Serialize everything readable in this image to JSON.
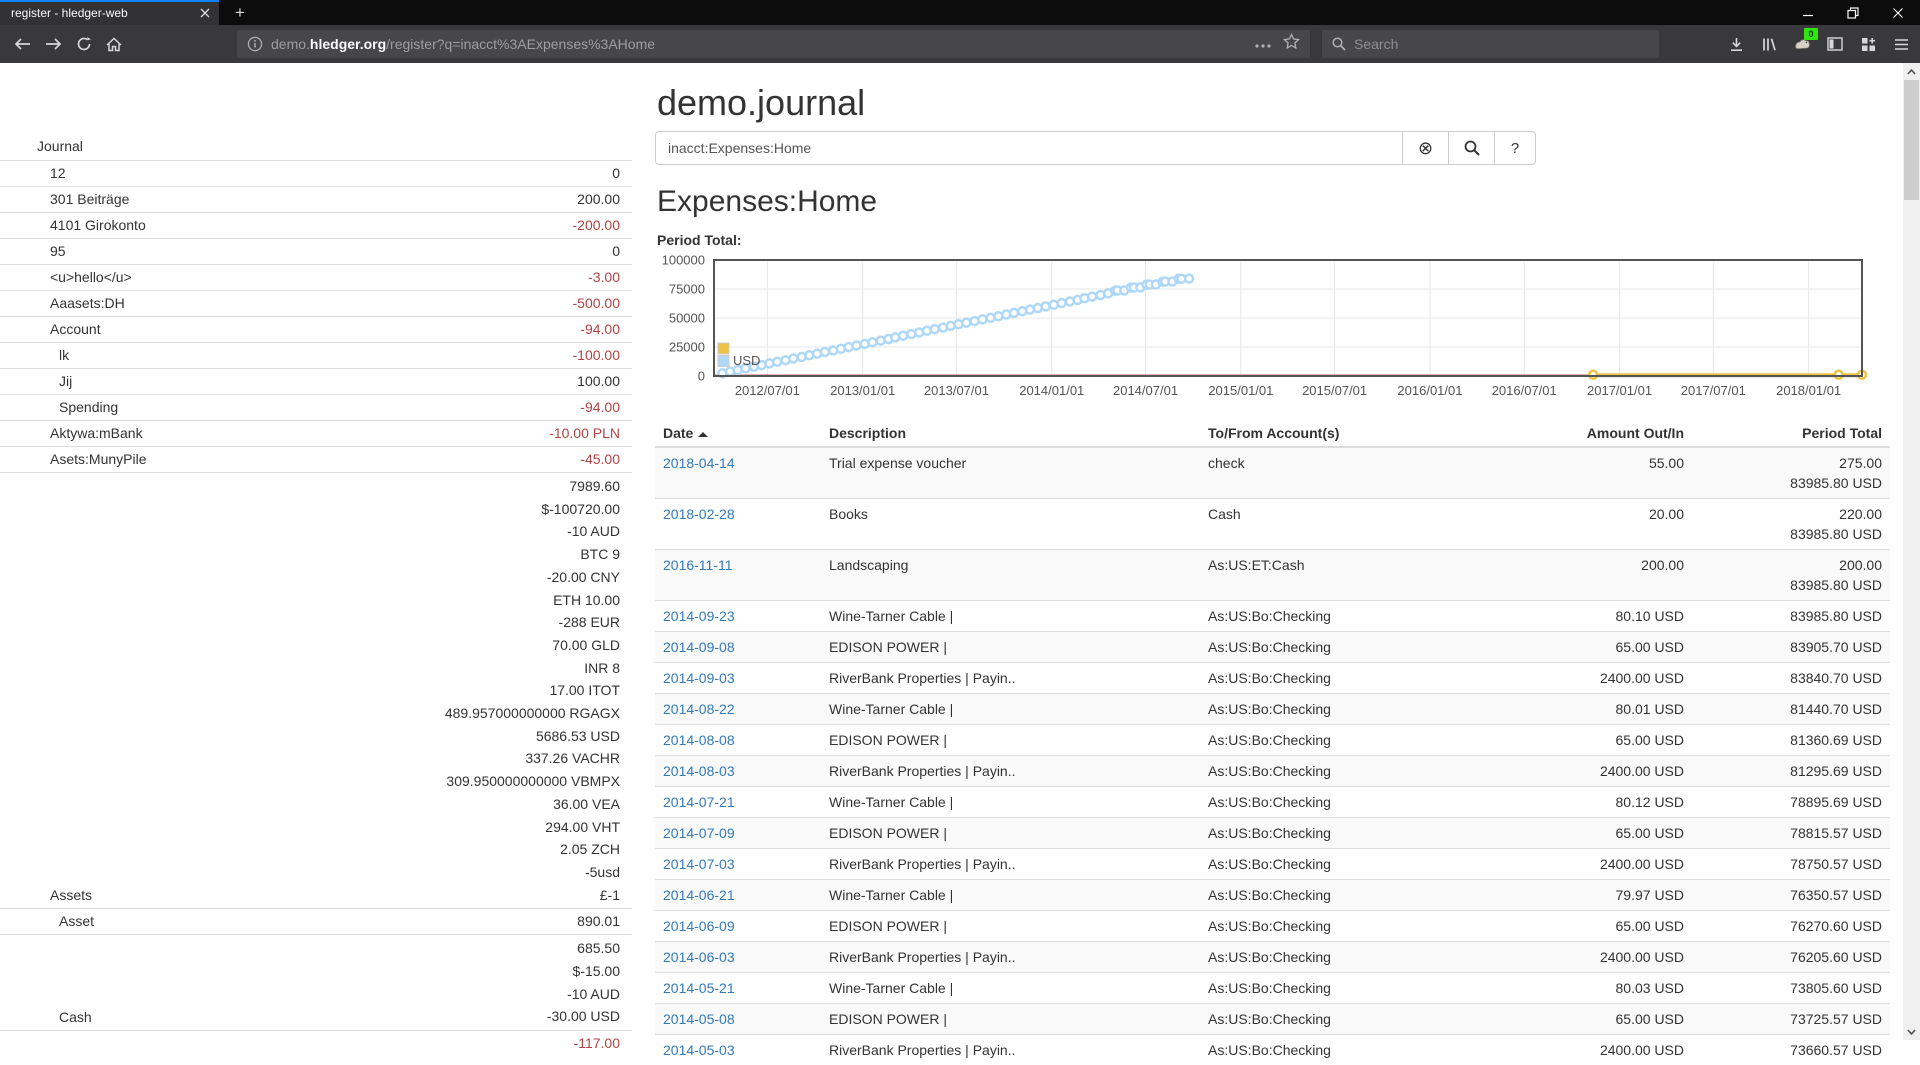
{
  "browser": {
    "tab_title": "register - hledger-web",
    "new_tab_label": "+",
    "url_prefix": "demo.",
    "url_domain": "hledger.org",
    "url_path": "/register?q=inacct%3AExpenses%3AHome",
    "search_placeholder": "Search",
    "extension_badge": "0"
  },
  "page": {
    "title": "demo.journal",
    "account_heading": "Expenses:Home",
    "chart_label": "Period Total:"
  },
  "search": {
    "value": "inacct:Expenses:Home",
    "clear_icon": "⊗",
    "help_label": "?"
  },
  "sidebar": {
    "journal_label": "Journal",
    "accounts": [
      {
        "name": "12",
        "indent": 1,
        "amounts": [
          {
            "t": "0",
            "neg": false
          }
        ]
      },
      {
        "name": "301 Beiträge",
        "indent": 1,
        "amounts": [
          {
            "t": "200.00",
            "neg": false
          }
        ]
      },
      {
        "name": "4101 Girokonto",
        "indent": 1,
        "amounts": [
          {
            "t": "-200.00",
            "neg": true
          }
        ]
      },
      {
        "name": "95",
        "indent": 1,
        "amounts": [
          {
            "t": "0",
            "neg": false
          }
        ]
      },
      {
        "name": "<u>hello</u>",
        "indent": 1,
        "amounts": [
          {
            "t": "-3.00",
            "neg": true
          }
        ]
      },
      {
        "name": "Aaasets:DH",
        "indent": 1,
        "amounts": [
          {
            "t": "-500.00",
            "neg": true
          }
        ]
      },
      {
        "name": "Account",
        "indent": 1,
        "amounts": [
          {
            "t": "-94.00",
            "neg": true
          }
        ]
      },
      {
        "name": "lk",
        "indent": 2,
        "amounts": [
          {
            "t": "-100.00",
            "neg": true
          }
        ]
      },
      {
        "name": "Jij",
        "indent": 2,
        "amounts": [
          {
            "t": "100.00",
            "neg": false
          }
        ]
      },
      {
        "name": "Spending",
        "indent": 2,
        "amounts": [
          {
            "t": "-94.00",
            "neg": true
          }
        ]
      },
      {
        "name": "Aktywa:mBank",
        "indent": 1,
        "amounts": [
          {
            "t": "-10.00 PLN",
            "neg": true
          }
        ]
      },
      {
        "name": "Asets:MunyPile",
        "indent": 1,
        "amounts": [
          {
            "t": "-45.00",
            "neg": true
          }
        ]
      },
      {
        "name": "Assets",
        "indent": 1,
        "amounts": [
          {
            "t": "7989.60",
            "neg": false
          },
          {
            "t": "$-100720.00",
            "neg": false
          },
          {
            "t": "-10 AUD",
            "neg": false
          },
          {
            "t": "BTC 9",
            "neg": false
          },
          {
            "t": "-20.00 CNY",
            "neg": false
          },
          {
            "t": "ETH 10.00",
            "neg": false
          },
          {
            "t": "-288 EUR",
            "neg": false
          },
          {
            "t": "70.00 GLD",
            "neg": false
          },
          {
            "t": "INR 8",
            "neg": false
          },
          {
            "t": "17.00 ITOT",
            "neg": false
          },
          {
            "t": "489.957000000000 RGAGX",
            "neg": false
          },
          {
            "t": "5686.53 USD",
            "neg": false
          },
          {
            "t": "337.26 VACHR",
            "neg": false
          },
          {
            "t": "309.950000000000 VBMPX",
            "neg": false
          },
          {
            "t": "36.00 VEA",
            "neg": false
          },
          {
            "t": "294.00 VHT",
            "neg": false
          },
          {
            "t": "2.05 ZCH",
            "neg": false
          },
          {
            "t": "-5usd",
            "neg": false
          },
          {
            "t": "£-1",
            "neg": false
          }
        ]
      },
      {
        "name": "Asset",
        "indent": 2,
        "amounts": [
          {
            "t": "890.01",
            "neg": false
          }
        ]
      },
      {
        "name": "Cash",
        "indent": 2,
        "amounts": [
          {
            "t": "685.50",
            "neg": false
          },
          {
            "t": "$-15.00",
            "neg": false
          },
          {
            "t": "-10 AUD",
            "neg": false
          },
          {
            "t": "-30.00 USD",
            "neg": false
          }
        ]
      },
      {
        "name": "",
        "indent": 2,
        "amounts": [
          {
            "t": "-117.00",
            "neg": true
          }
        ]
      }
    ]
  },
  "chart_data": {
    "type": "line",
    "title": "Period Total:",
    "x_axis": {
      "start": "2012-03-20",
      "end": "2018-04-14",
      "ticks": [
        {
          "date": "2012-07-01",
          "label": "2012/07/01"
        },
        {
          "date": "2013-01-01",
          "label": "2013/01/01"
        },
        {
          "date": "2013-07-01",
          "label": "2013/07/01"
        },
        {
          "date": "2014-01-01",
          "label": "2014/01/01"
        },
        {
          "date": "2014-07-01",
          "label": "2014/07/01"
        },
        {
          "date": "2015-01-01",
          "label": "2015/01/01"
        },
        {
          "date": "2015-07-01",
          "label": "2015/07/01"
        },
        {
          "date": "2016-01-01",
          "label": "2016/01/01"
        },
        {
          "date": "2016-07-01",
          "label": "2016/07/01"
        },
        {
          "date": "2017-01-01",
          "label": "2017/01/01"
        },
        {
          "date": "2017-07-01",
          "label": "2017/07/01"
        },
        {
          "date": "2018-01-01",
          "label": "2018/01/01"
        }
      ]
    },
    "y_axis": {
      "min": 0,
      "max": 100000,
      "ticks": [
        {
          "v": 0,
          "label": "0"
        },
        {
          "v": 25000,
          "label": "25000"
        },
        {
          "v": 50000,
          "label": "50000"
        },
        {
          "v": 75000,
          "label": "75000"
        },
        {
          "v": 100000,
          "label": "100000"
        }
      ]
    },
    "zero_line_color": "#cb4b4b",
    "grid_color": "#e7e7e7",
    "border_color": "#545454",
    "legend": [
      {
        "label": "",
        "color": "#edc240"
      },
      {
        "label": "USD",
        "color": "#afd8f8"
      }
    ],
    "series": [
      {
        "name": "USD",
        "color": "#afd8f8",
        "marker": "circle",
        "points": [
          [
            "2012-04-05",
            2400.0
          ],
          [
            "2012-04-20",
            3805.3
          ],
          [
            "2012-05-05",
            5210.6
          ],
          [
            "2012-05-20",
            6615.9
          ],
          [
            "2012-06-05",
            8021.2
          ],
          [
            "2012-06-20",
            9426.5
          ],
          [
            "2012-07-05",
            10831.8
          ],
          [
            "2012-07-20",
            12237.1
          ],
          [
            "2012-08-05",
            13642.4
          ],
          [
            "2012-08-20",
            15047.7
          ],
          [
            "2012-09-05",
            16453.0
          ],
          [
            "2012-09-20",
            17858.3
          ],
          [
            "2012-10-05",
            19263.6
          ],
          [
            "2012-10-20",
            20668.9
          ],
          [
            "2012-11-05",
            22074.2
          ],
          [
            "2012-11-20",
            23479.5
          ],
          [
            "2012-12-05",
            24884.8
          ],
          [
            "2012-12-20",
            26290.1
          ],
          [
            "2013-01-05",
            27695.4
          ],
          [
            "2013-01-20",
            29100.7
          ],
          [
            "2013-02-05",
            30506.0
          ],
          [
            "2013-02-20",
            31911.3
          ],
          [
            "2013-03-05",
            33316.6
          ],
          [
            "2013-03-20",
            34721.9
          ],
          [
            "2013-04-05",
            36127.2
          ],
          [
            "2013-04-20",
            37532.5
          ],
          [
            "2013-05-05",
            38937.8
          ],
          [
            "2013-05-20",
            40343.1
          ],
          [
            "2013-06-05",
            41748.4
          ],
          [
            "2013-06-20",
            43153.7
          ],
          [
            "2013-07-05",
            44559.0
          ],
          [
            "2013-07-20",
            45964.3
          ],
          [
            "2013-08-05",
            47369.6
          ],
          [
            "2013-08-20",
            48774.9
          ],
          [
            "2013-09-05",
            50180.2
          ],
          [
            "2013-09-20",
            51585.5
          ],
          [
            "2013-10-05",
            52990.8
          ],
          [
            "2013-10-20",
            54396.1
          ],
          [
            "2013-11-05",
            55801.4
          ],
          [
            "2013-11-20",
            57206.7
          ],
          [
            "2013-12-05",
            58612.0
          ],
          [
            "2013-12-20",
            60017.3
          ],
          [
            "2014-01-05",
            61422.6
          ],
          [
            "2014-01-20",
            62827.9
          ],
          [
            "2014-02-05",
            64233.2
          ],
          [
            "2014-02-20",
            65638.5
          ],
          [
            "2014-03-05",
            67043.8
          ],
          [
            "2014-03-20",
            68449.1
          ],
          [
            "2014-04-05",
            69854.4
          ],
          [
            "2014-04-20",
            71259.7
          ],
          [
            "2014-05-03",
            73660.57
          ],
          [
            "2014-05-08",
            73725.57
          ],
          [
            "2014-05-21",
            73805.6
          ],
          [
            "2014-06-03",
            76205.6
          ],
          [
            "2014-06-09",
            76270.6
          ],
          [
            "2014-06-21",
            76350.57
          ],
          [
            "2014-07-03",
            78750.57
          ],
          [
            "2014-07-09",
            78815.57
          ],
          [
            "2014-07-21",
            78895.69
          ],
          [
            "2014-08-03",
            81295.69
          ],
          [
            "2014-08-08",
            81360.69
          ],
          [
            "2014-08-22",
            81440.7
          ],
          [
            "2014-09-03",
            83840.7
          ],
          [
            "2014-09-08",
            83905.7
          ],
          [
            "2014-09-23",
            83985.8
          ]
        ]
      },
      {
        "name": "",
        "color": "#edc240",
        "marker": "circle",
        "points": [
          [
            "2016-11-11",
            200.0
          ],
          [
            "2018-02-28",
            220.0
          ],
          [
            "2018-04-14",
            275.0
          ]
        ]
      }
    ]
  },
  "table": {
    "columns": [
      "Date",
      "Description",
      "To/From Account(s)",
      "Amount Out/In",
      "Period Total"
    ],
    "rows": [
      {
        "date": "2018-04-14",
        "description": "Trial expense voucher",
        "account": "check",
        "amount": "55.00",
        "totals": [
          "275.00",
          "83985.80 USD"
        ]
      },
      {
        "date": "2018-02-28",
        "description": "Books",
        "account": "Cash",
        "amount": "20.00",
        "totals": [
          "220.00",
          "83985.80 USD"
        ]
      },
      {
        "date": "2016-11-11",
        "description": "Landscaping",
        "account": "As:US:ET:Cash",
        "amount": "200.00",
        "totals": [
          "200.00",
          "83985.80 USD"
        ]
      },
      {
        "date": "2014-09-23",
        "description": "Wine-Tarner Cable |",
        "account": "As:US:Bo:Checking",
        "amount": "80.10 USD",
        "totals": [
          "83985.80 USD"
        ]
      },
      {
        "date": "2014-09-08",
        "description": "EDISON POWER |",
        "account": "As:US:Bo:Checking",
        "amount": "65.00 USD",
        "totals": [
          "83905.70 USD"
        ]
      },
      {
        "date": "2014-09-03",
        "description": "RiverBank Properties | Payin..",
        "account": "As:US:Bo:Checking",
        "amount": "2400.00 USD",
        "totals": [
          "83840.70 USD"
        ]
      },
      {
        "date": "2014-08-22",
        "description": "Wine-Tarner Cable |",
        "account": "As:US:Bo:Checking",
        "amount": "80.01 USD",
        "totals": [
          "81440.70 USD"
        ]
      },
      {
        "date": "2014-08-08",
        "description": "EDISON POWER |",
        "account": "As:US:Bo:Checking",
        "amount": "65.00 USD",
        "totals": [
          "81360.69 USD"
        ]
      },
      {
        "date": "2014-08-03",
        "description": "RiverBank Properties | Payin..",
        "account": "As:US:Bo:Checking",
        "amount": "2400.00 USD",
        "totals": [
          "81295.69 USD"
        ]
      },
      {
        "date": "2014-07-21",
        "description": "Wine-Tarner Cable |",
        "account": "As:US:Bo:Checking",
        "amount": "80.12 USD",
        "totals": [
          "78895.69 USD"
        ]
      },
      {
        "date": "2014-07-09",
        "description": "EDISON POWER |",
        "account": "As:US:Bo:Checking",
        "amount": "65.00 USD",
        "totals": [
          "78815.57 USD"
        ]
      },
      {
        "date": "2014-07-03",
        "description": "RiverBank Properties | Payin..",
        "account": "As:US:Bo:Checking",
        "amount": "2400.00 USD",
        "totals": [
          "78750.57 USD"
        ]
      },
      {
        "date": "2014-06-21",
        "description": "Wine-Tarner Cable |",
        "account": "As:US:Bo:Checking",
        "amount": "79.97 USD",
        "totals": [
          "76350.57 USD"
        ]
      },
      {
        "date": "2014-06-09",
        "description": "EDISON POWER |",
        "account": "As:US:Bo:Checking",
        "amount": "65.00 USD",
        "totals": [
          "76270.60 USD"
        ]
      },
      {
        "date": "2014-06-03",
        "description": "RiverBank Properties | Payin..",
        "account": "As:US:Bo:Checking",
        "amount": "2400.00 USD",
        "totals": [
          "76205.60 USD"
        ]
      },
      {
        "date": "2014-05-21",
        "description": "Wine-Tarner Cable |",
        "account": "As:US:Bo:Checking",
        "amount": "80.03 USD",
        "totals": [
          "73805.60 USD"
        ]
      },
      {
        "date": "2014-05-08",
        "description": "EDISON POWER |",
        "account": "As:US:Bo:Checking",
        "amount": "65.00 USD",
        "totals": [
          "73725.57 USD"
        ]
      },
      {
        "date": "2014-05-03",
        "description": "RiverBank Properties | Payin..",
        "account": "As:US:Bo:Checking",
        "amount": "2400.00 USD",
        "totals": [
          "73660.57 USD"
        ]
      }
    ]
  }
}
